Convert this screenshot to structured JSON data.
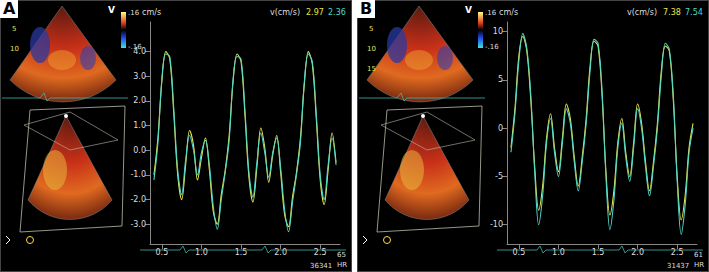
{
  "chart_data": [
    {
      "type": "line",
      "y_label": "cm/s",
      "x": [
        0.4,
        0.45,
        0.5,
        0.55,
        0.6,
        0.65,
        0.7,
        0.75,
        0.8,
        0.85,
        0.9,
        0.95,
        1.0,
        1.05,
        1.1,
        1.15,
        1.2,
        1.25,
        1.3,
        1.35,
        1.4,
        1.45,
        1.5,
        1.55,
        1.6,
        1.65,
        1.7,
        1.75,
        1.8,
        1.85,
        1.9,
        1.95,
        2.0,
        2.05,
        2.1,
        2.15,
        2.2,
        2.25,
        2.3,
        2.35,
        2.4,
        2.45,
        2.5,
        2.55,
        2.6,
        2.65,
        2.7
      ],
      "xlim": [
        0.35,
        2.75
      ],
      "xticks": [
        {
          "value": 0.5,
          "label": "0.5"
        },
        {
          "value": 1.0,
          "label": "1.0"
        },
        {
          "value": 1.5,
          "label": "1.5"
        },
        {
          "value": 2.0,
          "label": "2.0"
        },
        {
          "value": 2.5,
          "label": "2.5"
        }
      ],
      "ylim": [
        -3.8,
        5.2
      ],
      "yticks": [
        {
          "value": -3,
          "label": "-3.0"
        },
        {
          "value": -2,
          "label": "-2.0"
        },
        {
          "value": -1,
          "label": "-1.0"
        },
        {
          "value": 0,
          "label": "0.0"
        },
        {
          "value": 1,
          "label": "1.0"
        },
        {
          "value": 2,
          "label": "2.0"
        },
        {
          "value": 3,
          "label": "3.0"
        },
        {
          "value": 4,
          "label": "4.0"
        }
      ],
      "grid": false,
      "series": [
        {
          "color": "#e6e64c",
          "values": [
            -1.0,
            0.5,
            2.8,
            4.0,
            3.7,
            1.5,
            -1.0,
            -2.0,
            -0.6,
            0.8,
            0.2,
            -1.2,
            -0.3,
            0.5,
            -0.8,
            -2.5,
            -3.0,
            -1.8,
            -0.8,
            0.6,
            2.8,
            3.9,
            3.6,
            1.4,
            -1.1,
            -2.1,
            -0.7,
            0.9,
            0.1,
            -1.3,
            -0.2,
            0.6,
            -0.9,
            -2.6,
            -3.1,
            -1.9,
            -0.9,
            0.5,
            2.7,
            4.0,
            3.5,
            1.3,
            -1.2,
            -2.2,
            -0.8,
            0.7,
            -0.5
          ]
        },
        {
          "color": "#4fd8c8",
          "values": [
            -1.2,
            0.3,
            2.9,
            3.9,
            3.8,
            1.7,
            -0.8,
            -1.8,
            -0.4,
            0.6,
            0.0,
            -1.0,
            -0.1,
            0.4,
            -0.6,
            -2.3,
            -3.2,
            -2.0,
            -0.9,
            0.4,
            2.9,
            3.8,
            3.7,
            1.6,
            -0.9,
            -1.9,
            -0.5,
            0.7,
            -0.1,
            -1.1,
            -0.1,
            0.5,
            -0.7,
            -2.4,
            -3.3,
            -2.1,
            -1.0,
            0.3,
            2.8,
            3.9,
            3.6,
            1.5,
            -1.0,
            -2.0,
            -0.6,
            0.5,
            -0.6
          ]
        }
      ]
    },
    {
      "type": "line",
      "y_label": "cm/s",
      "x": [
        0.4,
        0.45,
        0.5,
        0.55,
        0.6,
        0.65,
        0.7,
        0.75,
        0.8,
        0.85,
        0.9,
        0.95,
        1.0,
        1.05,
        1.1,
        1.15,
        1.2,
        1.25,
        1.3,
        1.35,
        1.4,
        1.45,
        1.5,
        1.55,
        1.6,
        1.65,
        1.7,
        1.75,
        1.8,
        1.85,
        1.9,
        1.95,
        2.0,
        2.05,
        2.1,
        2.15,
        2.2,
        2.25,
        2.3,
        2.35,
        2.4,
        2.45,
        2.5,
        2.55,
        2.6,
        2.65,
        2.7
      ],
      "xlim": [
        0.35,
        2.75
      ],
      "xticks": [
        {
          "value": 0.5,
          "label": "0.5"
        },
        {
          "value": 1.0,
          "label": "1.0"
        },
        {
          "value": 1.5,
          "label": "1.5"
        },
        {
          "value": 2.0,
          "label": "2.0"
        },
        {
          "value": 2.5,
          "label": "2.5"
        }
      ],
      "ylim": [
        -12,
        11
      ],
      "yticks": [
        -10,
        -5,
        0,
        5,
        10
      ],
      "grid": false,
      "series": [
        {
          "color": "#e6e64c",
          "values": [
            -2.0,
            2.0,
            7.5,
            9.5,
            8.0,
            3.0,
            -4.0,
            -8.5,
            -6.0,
            -1.0,
            1.5,
            -2.0,
            -4.5,
            -1.0,
            2.5,
            1.0,
            -3.0,
            -6.0,
            -3.0,
            1.0,
            6.5,
            9.0,
            8.5,
            3.5,
            -4.5,
            -9.0,
            -6.5,
            -1.5,
            1.0,
            -2.5,
            -5.0,
            -1.5,
            2.5,
            0.5,
            -3.5,
            -6.5,
            -3.5,
            0.5,
            6.0,
            8.5,
            8.0,
            3.0,
            -5.0,
            -9.5,
            -7.0,
            -2.0,
            0.5
          ]
        },
        {
          "color": "#4fd8c8",
          "values": [
            -2.5,
            1.5,
            7.0,
            9.8,
            8.3,
            3.5,
            -4.5,
            -10.0,
            -7.0,
            -1.5,
            1.0,
            -2.5,
            -5.0,
            -1.5,
            2.0,
            0.5,
            -3.5,
            -6.5,
            -3.5,
            0.5,
            6.0,
            9.2,
            8.8,
            4.0,
            -5.0,
            -10.5,
            -7.5,
            -2.0,
            0.5,
            -3.0,
            -5.5,
            -2.0,
            2.0,
            0.0,
            -4.0,
            -7.0,
            -4.0,
            0.0,
            5.5,
            8.8,
            8.2,
            3.5,
            -5.5,
            -11.0,
            -8.0,
            -2.5,
            0.0
          ]
        }
      ]
    }
  ],
  "panels": [
    {
      "label": "A",
      "mode": "V",
      "scale_top": ".16",
      "scale_bottom": "-.16",
      "depths": [
        "5",
        "10"
      ],
      "header": "v(cm/s)",
      "readouts": [
        "2.97",
        "2.36"
      ],
      "hr": "65",
      "hr_label": "HR",
      "frame": "36341"
    },
    {
      "label": "B",
      "mode": "V",
      "scale_top": ".16",
      "scale_bottom": "-.16",
      "depths": [
        "5",
        "10",
        "15"
      ],
      "header": "v(cm/s)",
      "readouts": [
        "7.38",
        "7.54"
      ],
      "hr": "61",
      "hr_label": "HR",
      "frame": "31437"
    }
  ]
}
